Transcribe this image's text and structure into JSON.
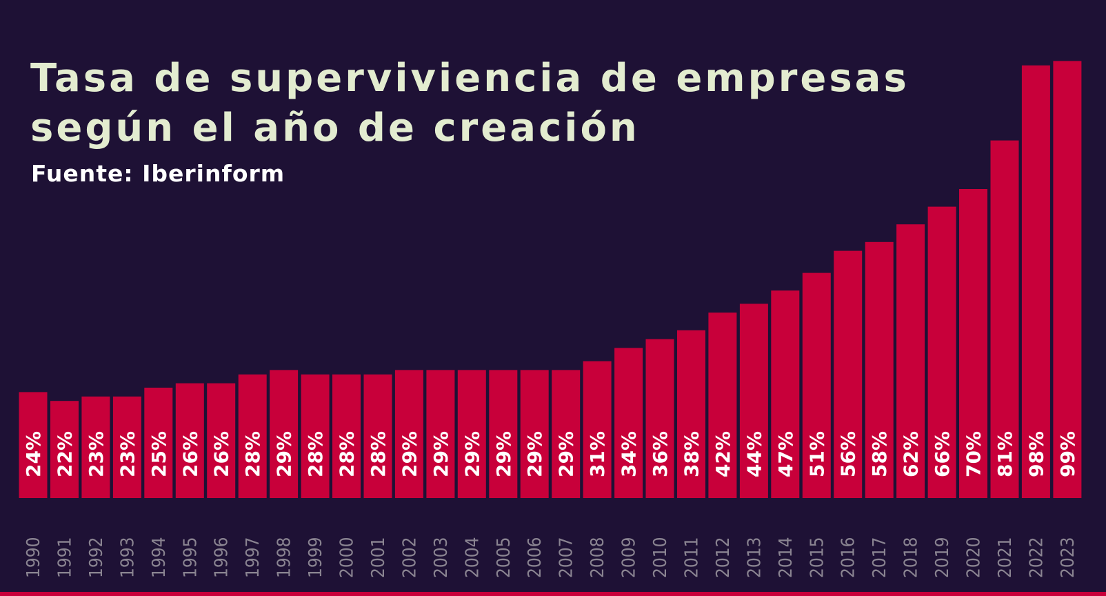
{
  "title_line1": "Tasa de superviviencia de empresas",
  "title_line2": "según el año de creación",
  "subtitle": "Fuente: Iberinform",
  "colors": {
    "background": "#1e1135",
    "bar": "#c8003a",
    "title": "#e3ecd0",
    "label": "#ffffff",
    "tick": "#8a8491"
  },
  "chart_data": {
    "type": "bar",
    "categories": [
      "1990",
      "1991",
      "1992",
      "1993",
      "1994",
      "1995",
      "1996",
      "1997",
      "1998",
      "1999",
      "2000",
      "2001",
      "2002",
      "2003",
      "2004",
      "2005",
      "2006",
      "2007",
      "2008",
      "2009",
      "2010",
      "2011",
      "2012",
      "2013",
      "2014",
      "2015",
      "2016",
      "2017",
      "2018",
      "2019",
      "2020",
      "2021",
      "2022",
      "2023"
    ],
    "values": [
      24,
      22,
      23,
      23,
      25,
      26,
      26,
      28,
      29,
      28,
      28,
      28,
      29,
      29,
      29,
      29,
      29,
      29,
      31,
      34,
      36,
      38,
      42,
      44,
      47,
      51,
      56,
      58,
      62,
      66,
      70,
      81,
      98,
      99
    ],
    "value_labels": [
      "24%",
      "22%",
      "23%",
      "23%",
      "25%",
      "26%",
      "26%",
      "28%",
      "29%",
      "28%",
      "28%",
      "28%",
      "29%",
      "29%",
      "29%",
      "29%",
      "29%",
      "29%",
      "31%",
      "34%",
      "36%",
      "38%",
      "42%",
      "44%",
      "47%",
      "51%",
      "56%",
      "58%",
      "62%",
      "66%",
      "70%",
      "81%",
      "98%",
      "99%"
    ],
    "title": "Tasa de superviviencia de empresas según el año de creación",
    "xlabel": "",
    "ylabel": "",
    "ylim": [
      0,
      100
    ],
    "grid": false,
    "legend": "none"
  }
}
